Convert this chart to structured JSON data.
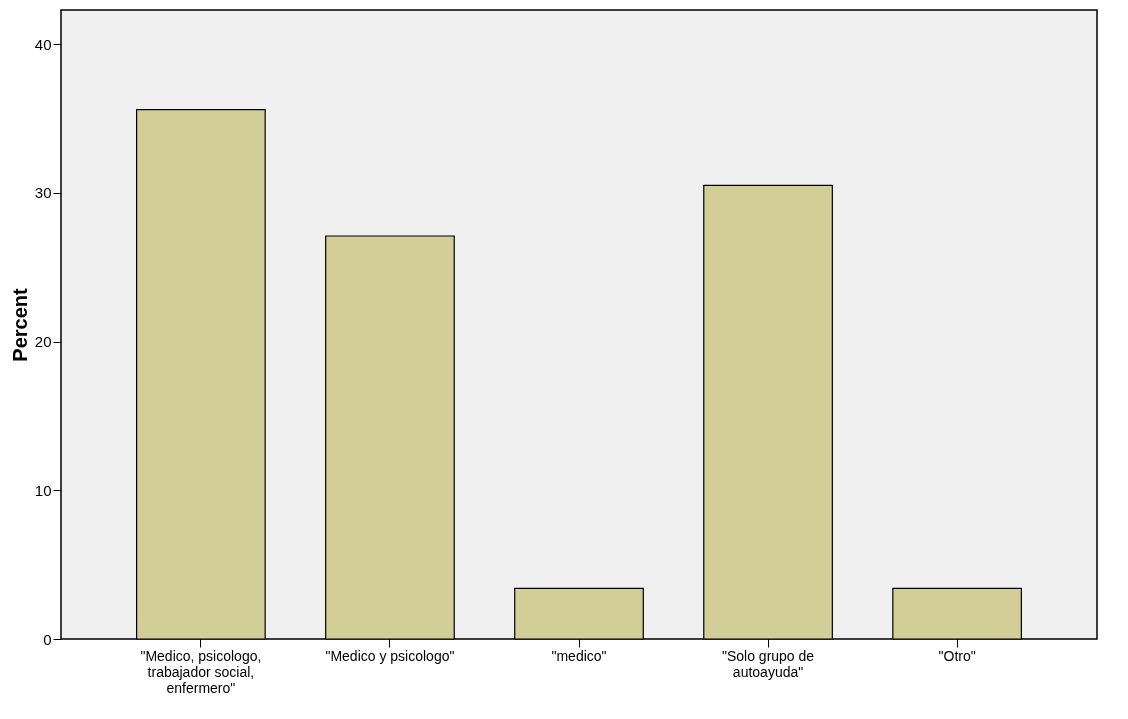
{
  "chart_data": {
    "type": "bar",
    "ylabel": "Percent",
    "categories": [
      "\"Medico, psicologo, trabajador social, enfermero\"",
      "\"Medico y psicologo\"",
      "\"medico\"",
      "\"Solo grupo de autoayuda\"",
      "\"Otro\""
    ],
    "values": [
      35.6,
      27.1,
      3.4,
      30.5,
      3.4
    ],
    "color": "#d3ce97",
    "ylim": [
      0,
      42.3
    ],
    "yticks": [
      0,
      10,
      20,
      30,
      40
    ],
    "grid": false
  }
}
